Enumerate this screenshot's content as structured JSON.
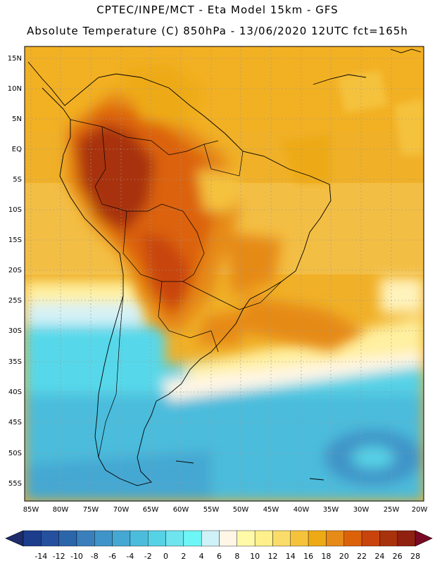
{
  "header": {
    "line1": "CPTEC/INPE/MCT -  Eta Model 15km - GFS",
    "line2": "Absolute Temperature (C) 850hPa - 13/06/2020 12UTC fct=165h"
  },
  "map": {
    "lat_labels": [
      "15N",
      "10N",
      "5N",
      "EQ",
      "5S",
      "10S",
      "15S",
      "20S",
      "25S",
      "30S",
      "35S",
      "40S",
      "45S",
      "50S",
      "55S"
    ],
    "lon_labels": [
      "85W",
      "80W",
      "75W",
      "70W",
      "65W",
      "60W",
      "55W",
      "50W",
      "45W",
      "40W",
      "35W",
      "30W",
      "25W",
      "20W"
    ]
  },
  "colorbar": {
    "labels": [
      "-14",
      "-12",
      "-10",
      "-8",
      "-6",
      "-4",
      "-2",
      "0",
      "2",
      "4",
      "6",
      "8",
      "10",
      "12",
      "14",
      "16",
      "18",
      "20",
      "22",
      "24",
      "26",
      "28"
    ],
    "colors": [
      "#1c3c8c",
      "#24509e",
      "#2c66aa",
      "#3a7fbc",
      "#3f94c8",
      "#45a8d2",
      "#4cbcdc",
      "#56d2e6",
      "#6ee4ee",
      "#6ef6f6",
      "#cff2f8",
      "#fff6e6",
      "#fffaa8",
      "#fff08c",
      "#fadc6a",
      "#f5c23c",
      "#eeaa14",
      "#e68a18",
      "#dc620a",
      "#c8440c",
      "#a8320c",
      "#902010"
    ],
    "low_cap": "#1c2c6c",
    "high_cap": "#7a0a24"
  }
}
